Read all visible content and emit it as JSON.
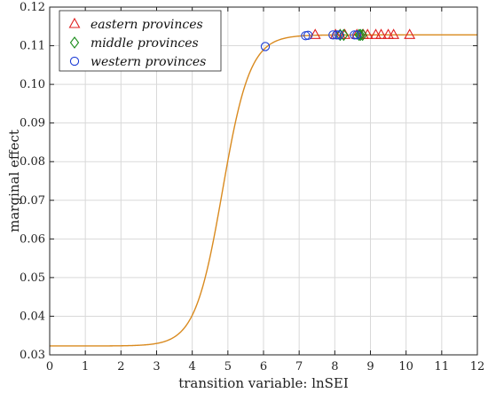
{
  "chart_data": {
    "type": "line",
    "xlabel": "transition variable: lnSEI",
    "ylabel": "marginal effect",
    "xlim": [
      0,
      12
    ],
    "ylim": [
      0.03,
      0.12
    ],
    "xticks": [
      "0",
      "1",
      "2",
      "3",
      "4",
      "5",
      "6",
      "7",
      "8",
      "9",
      "10",
      "11",
      "12"
    ],
    "yticks": [
      "0.03",
      "0.04",
      "0.05",
      "0.06",
      "0.07",
      "0.08",
      "0.09",
      "0.10",
      "0.11",
      "0.12"
    ],
    "grid": true,
    "legend_position": "top-left",
    "curve": {
      "color": "#d98a1f",
      "low": 0.0323,
      "high": 0.1128,
      "center": 4.85,
      "slope": 2.6
    },
    "series": [
      {
        "name": "eastern provinces",
        "marker": "triangle",
        "color": "#e02020",
        "points": [
          {
            "x": 7.45,
            "y": 0.1128
          },
          {
            "x": 8.02,
            "y": 0.1128
          },
          {
            "x": 8.15,
            "y": 0.1128
          },
          {
            "x": 8.28,
            "y": 0.1128
          },
          {
            "x": 8.62,
            "y": 0.1128
          },
          {
            "x": 8.8,
            "y": 0.1128
          },
          {
            "x": 8.92,
            "y": 0.1128
          },
          {
            "x": 9.15,
            "y": 0.1128
          },
          {
            "x": 9.3,
            "y": 0.1128
          },
          {
            "x": 9.5,
            "y": 0.1128
          },
          {
            "x": 9.65,
            "y": 0.1128
          },
          {
            "x": 10.1,
            "y": 0.1128
          }
        ]
      },
      {
        "name": "middle provinces",
        "marker": "diamond",
        "color": "#1a8c1a",
        "points": [
          {
            "x": 8.15,
            "y": 0.1128
          },
          {
            "x": 8.25,
            "y": 0.1128
          },
          {
            "x": 8.68,
            "y": 0.1128
          },
          {
            "x": 8.72,
            "y": 0.1128
          },
          {
            "x": 8.78,
            "y": 0.1128
          }
        ]
      },
      {
        "name": "western provinces",
        "marker": "circle",
        "color": "#1f3fd6",
        "points": [
          {
            "x": 6.05,
            "y": 0.1098
          },
          {
            "x": 7.18,
            "y": 0.1126
          },
          {
            "x": 7.25,
            "y": 0.1127
          },
          {
            "x": 7.95,
            "y": 0.1128
          },
          {
            "x": 8.05,
            "y": 0.1128
          },
          {
            "x": 8.12,
            "y": 0.1128
          },
          {
            "x": 8.55,
            "y": 0.1128
          },
          {
            "x": 8.62,
            "y": 0.1128
          }
        ]
      }
    ]
  }
}
